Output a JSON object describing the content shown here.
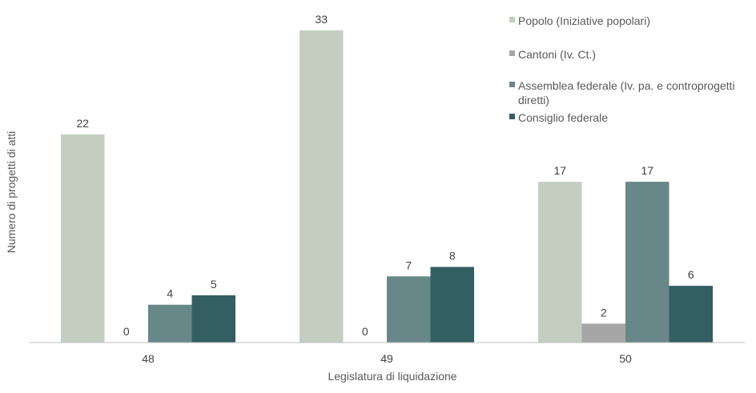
{
  "chart_data": {
    "type": "bar",
    "categories": [
      "48",
      "49",
      "50"
    ],
    "series": [
      {
        "name": "Popolo (Iniziative popolari)",
        "values": [
          22,
          33,
          17
        ],
        "color": "#c3cec1"
      },
      {
        "name": "Cantoni (Iv. Ct.)",
        "values": [
          0,
          0,
          2
        ],
        "color": "#a6a6a6"
      },
      {
        "name": "Assemblea federale (Iv. pa. e controprogetti diretti)",
        "legend_lines": [
          "Assemblea federale (Iv. pa. e controprogetti",
          "diretti)"
        ],
        "values": [
          4,
          7,
          17
        ],
        "color": "#678788"
      },
      {
        "name": "Consiglio federale",
        "values": [
          5,
          8,
          6
        ],
        "color": "#345f62"
      }
    ],
    "xlabel": "Legislatura di liquidazione",
    "ylabel": "Numero di progetti di atti",
    "ylim": [
      0,
      33
    ],
    "grid": false,
    "legend": "top-right",
    "data_labels": true
  }
}
